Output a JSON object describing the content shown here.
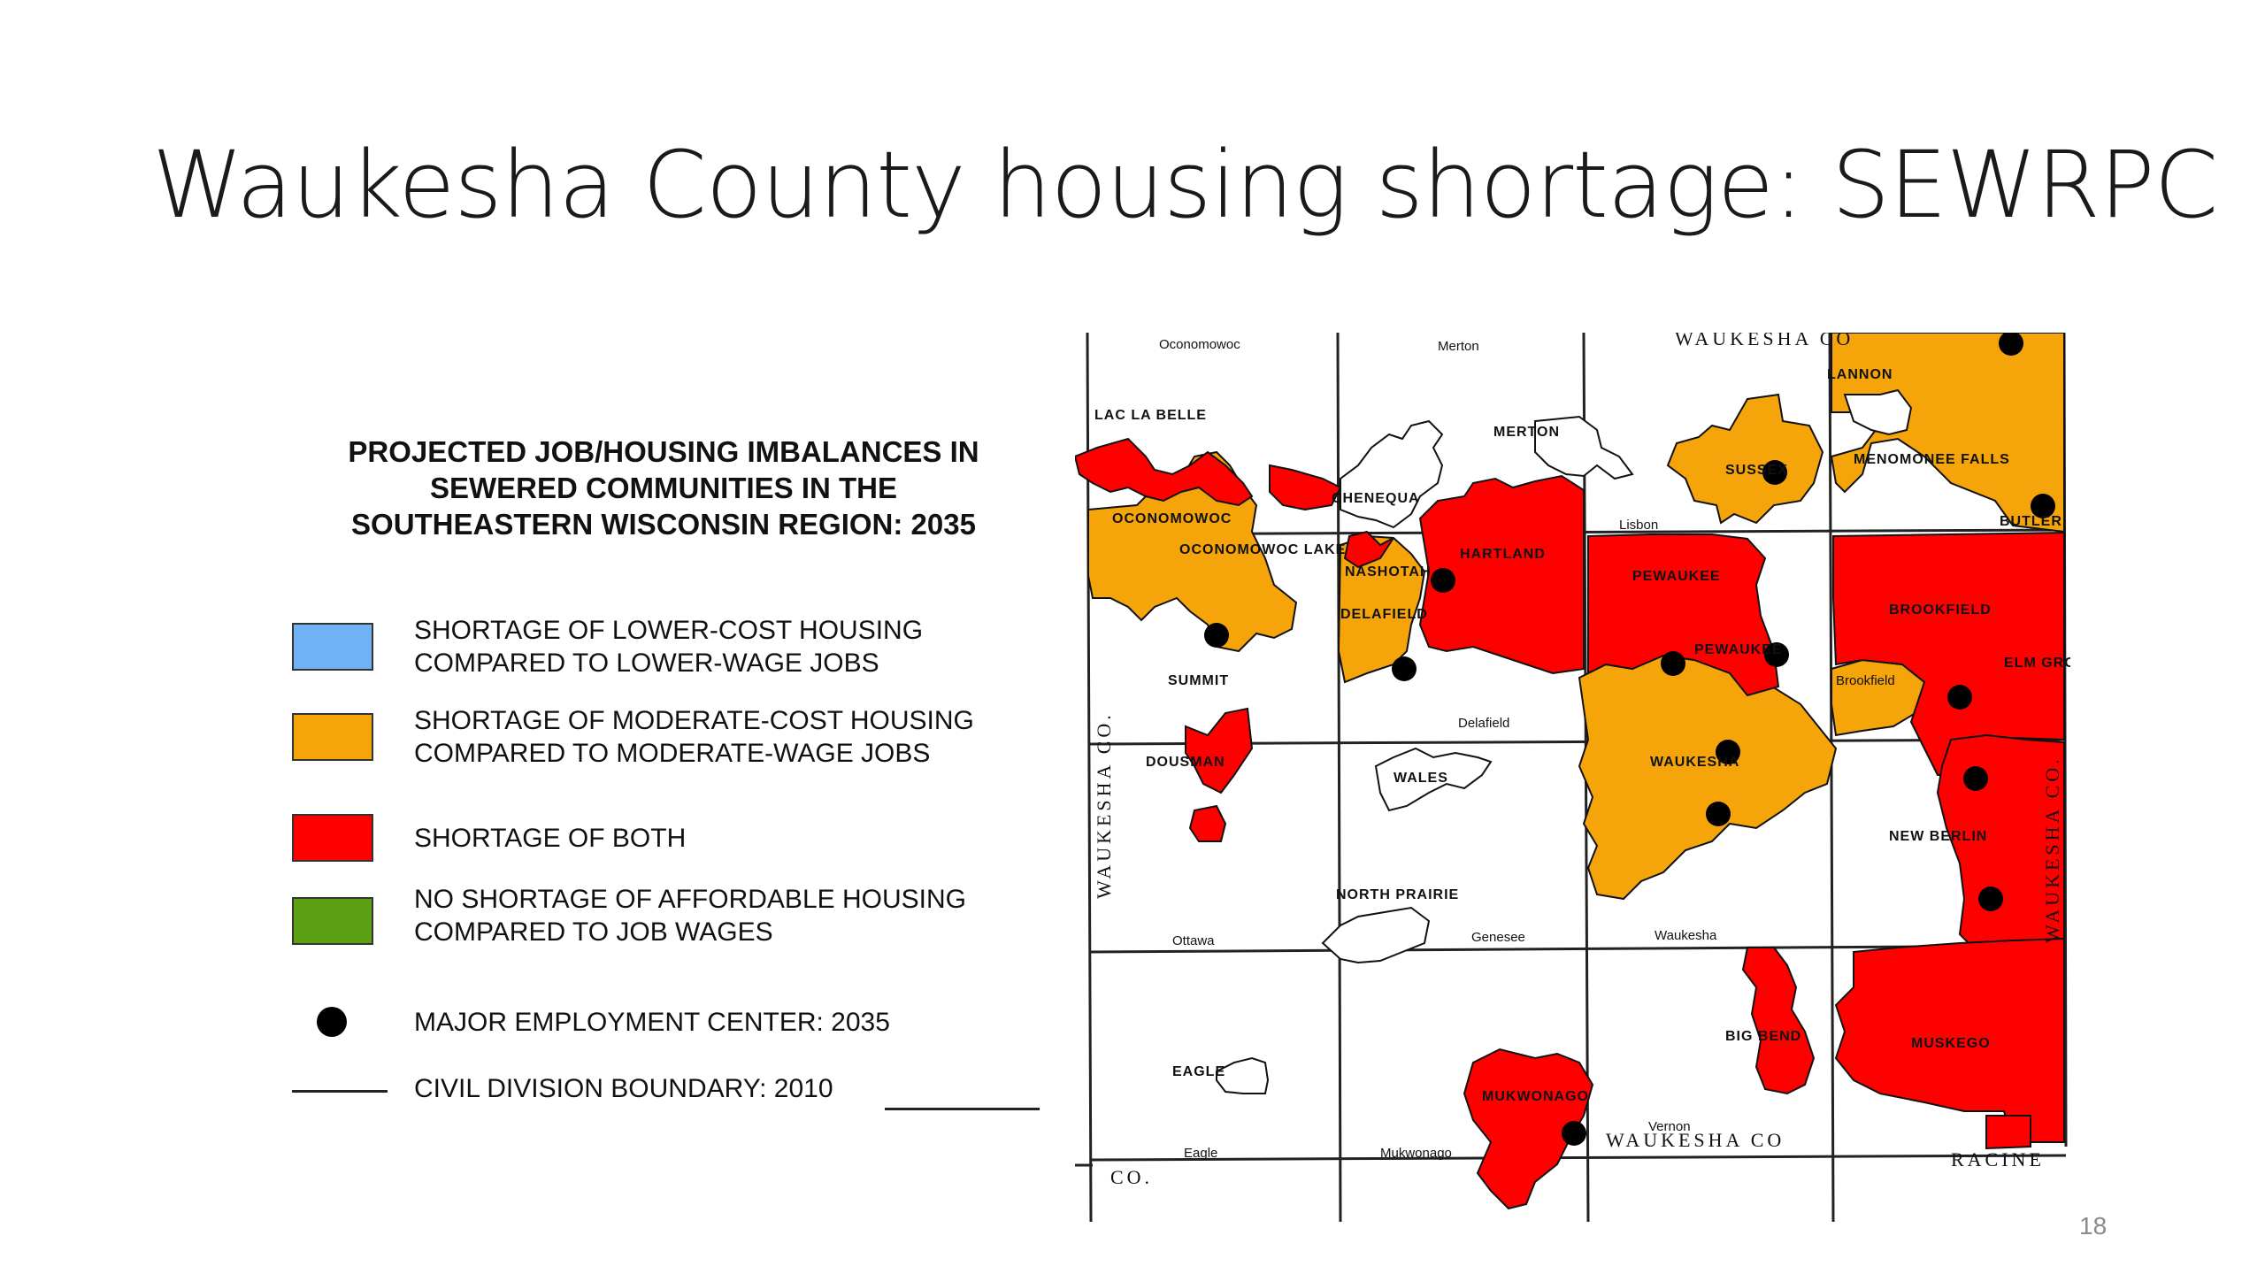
{
  "slide": {
    "title": "Waukesha County housing shortage: SEWRPC",
    "page_number": "18"
  },
  "legend": {
    "title_lines": [
      "PROJECTED JOB/HOUSING IMBALANCES IN",
      "SEWERED COMMUNITIES IN THE",
      "SOUTHEASTERN WISCONSIN REGION: 2035"
    ],
    "items": [
      {
        "type": "swatch",
        "color": "#6fb2f5",
        "lines": [
          "SHORTAGE OF LOWER-COST HOUSING",
          "COMPARED TO LOWER-WAGE JOBS"
        ]
      },
      {
        "type": "swatch",
        "color": "#f5a50a",
        "lines": [
          "SHORTAGE OF MODERATE-COST HOUSING",
          "COMPARED TO MODERATE-WAGE JOBS"
        ]
      },
      {
        "type": "swatch",
        "color": "#ff0000",
        "lines": [
          "SHORTAGE OF BOTH"
        ]
      },
      {
        "type": "swatch",
        "color": "#5aa012",
        "lines": [
          "NO SHORTAGE OF AFFORDABLE HOUSING",
          "COMPARED TO JOB WAGES"
        ]
      },
      {
        "type": "dot",
        "color": "#000000",
        "lines": [
          "MAJOR EMPLOYMENT CENTER: 2035"
        ]
      },
      {
        "type": "line",
        "color": "#222222",
        "lines": [
          "CIVIL DIVISION BOUNDARY: 2010"
        ]
      }
    ]
  },
  "map": {
    "colors": {
      "moderate": "#f5a50a",
      "both": "#ff0000",
      "boundary": "#222222",
      "outline": "#111111"
    },
    "county_labels": {
      "top": "WAUKESHA CO",
      "left": "WAUKESHA CO.",
      "right": "WAUKESHA CO.",
      "bottom": "WAUKESHA CO",
      "bottom_left": "CO.",
      "bottom_right": "RACINE"
    },
    "place_labels": {
      "oconomowoc_town": "Oconomowoc",
      "merton_town": "Merton",
      "lac_la_belle": "LAC LA BELLE",
      "merton": "MERTON",
      "lannon": "LANNON",
      "menomonee_falls": "MENOMONEE FALLS",
      "chenequa": "CHENEQUA",
      "oconomowoc": "OCONOMOWOC",
      "oconomowoc_lake": "OCONOMOWOC LAKE",
      "lisbon": "Lisbon",
      "sussex": "SUSSEX",
      "butler": "BUTLER",
      "nashotah": "NASHOTAH",
      "hartland": "HARTLAND",
      "pewaukee_village": "PEWAUKEE",
      "brookfield": "BROOKFIELD",
      "delafield_city": "DELAFIELD",
      "pewaukee": "PEWAUKEE",
      "elm_grove": "ELM GROVE",
      "summit": "SUMMIT",
      "brookfield_town": "Brookfield",
      "delafield_town": "Delafield",
      "dousman": "DOUSMAN",
      "waukesha": "WAUKESHA",
      "wales": "WALES",
      "new_berlin": "NEW BERLIN",
      "north_prairie": "NORTH PRAIRIE",
      "ottawa": "Ottawa",
      "genesee": "Genesee",
      "waukesha_town": "Waukesha",
      "big_bend": "BIG BEND",
      "eagle": "EAGLE",
      "muskego": "MUSKEGO",
      "mukwonago_village": "MUKWONAGO",
      "vernon": "Vernon",
      "eagle_town": "Eagle",
      "mukwonago_town": "Mukwonago"
    }
  }
}
